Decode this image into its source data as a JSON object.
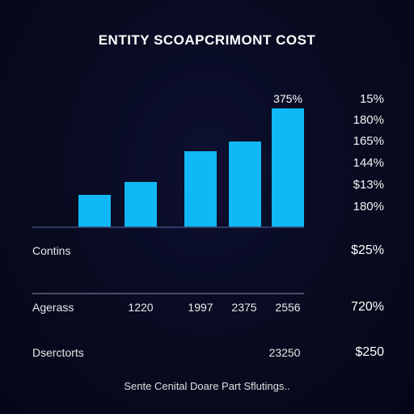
{
  "title": "ENTITY SCOAPCRIMONT COST",
  "chart_data": {
    "type": "bar",
    "values": [
      40,
      56,
      94,
      106,
      147
    ],
    "ylim": [
      0,
      160
    ],
    "bar_label": "375%",
    "axis_color": "#3a4a7a",
    "bar_color": "#10b8f4"
  },
  "right_labels": [
    "15%",
    "180%",
    "165%",
    "144%",
    "$13%",
    "180%"
  ],
  "rows": [
    {
      "label": "Contins",
      "values": [],
      "right": "$25%"
    },
    {
      "label": "Agerass",
      "values": [
        "1220",
        "1997",
        "2375",
        "2556"
      ],
      "right": "720%"
    },
    {
      "label": "Dserctorts",
      "values": [
        "23250"
      ],
      "right": "$250"
    }
  ],
  "footer": "Sente Cenital Doare Part Sflutings.."
}
